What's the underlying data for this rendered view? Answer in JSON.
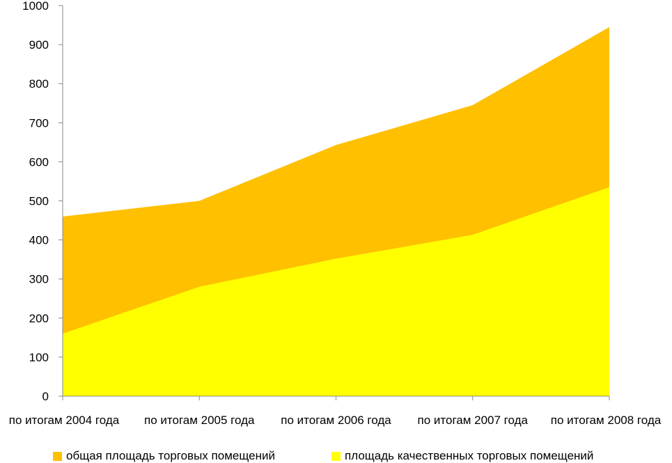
{
  "chart_data": {
    "type": "area",
    "stacked": false,
    "categories": [
      "по итогам 2004 года",
      "по итогам 2005 года",
      "по итогам 2006 года",
      "по итогам 2007 года",
      "по итогам 2008 года"
    ],
    "series": [
      {
        "name": "общая площадь торговых помещений",
        "values": [
          460,
          500,
          643,
          745,
          945
        ],
        "color": "#FFC000"
      },
      {
        "name": "площадь качественных торговых помещений",
        "values": [
          160,
          280,
          352,
          413,
          535
        ],
        "color": "#FFFF00"
      }
    ],
    "ylim": [
      0,
      1000
    ],
    "yticks": [
      0,
      100,
      200,
      300,
      400,
      500,
      600,
      700,
      800,
      900,
      1000
    ],
    "grid": false,
    "legend_position": "bottom"
  }
}
